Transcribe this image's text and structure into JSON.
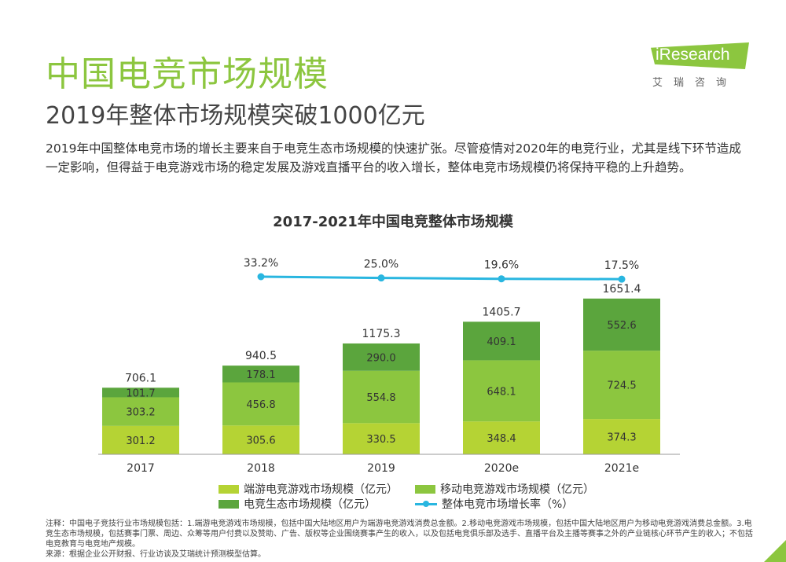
{
  "page": {
    "title": "中国电竞市场规模",
    "subtitle": "2019年整体市场规模突破1000亿元",
    "description": "2019年中国整体电竞市场的增长主要来自于电竞生态市场规模的快速扩张。尽管疫情对2020年的电竞行业，尤其是线下环节造成一定影响，但得益于电竞游戏市场的稳定发展及游戏直播平台的收入增长，整体电竞市场规模仍将保持平稳的上升趋势。",
    "logo_text": "iResearch",
    "logo_sub": "艾瑞咨询",
    "note": "注释：中国电子竞技行业市场规模包括：1.端游电竞游戏市场规模，包括中国大陆地区用户为端游电竞游戏消费总金额。2.移动电竞游戏市场规模，包括中国大陆地区用户为移动电竞游戏消费总金额。3.电竞生态市场规模，包括赛事门票、周边、众筹等用户付费以及赞助、广告、版权等企业围绕赛事产生的收入，以及包括电竞俱乐部及选手、直播平台及主播等赛事之外的产业链核心环节产生的收入；不包括电竞教育与电竞地产规模。",
    "source": "来源：根据企业公开财报、行业访谈及艾瑞统计预测模型估算。"
  },
  "colors": {
    "pc": "#b5d334",
    "mobile": "#8cc63f",
    "eco": "#5ba53d",
    "growth": "#29b6e0",
    "title_green": "#8cc63f"
  },
  "chart_data": {
    "type": "bar",
    "stacked": true,
    "title": "2017-2021年中国电竞整体市场规模",
    "categories": [
      "2017",
      "2018",
      "2019",
      "2020e",
      "2021e"
    ],
    "series": [
      {
        "name": "端游电竞游戏市场规模（亿元）",
        "values": [
          301.2,
          305.6,
          330.5,
          348.4,
          374.3
        ]
      },
      {
        "name": "移动电竞游戏市场规模（亿元）",
        "values": [
          303.2,
          456.8,
          554.8,
          648.1,
          724.5
        ]
      },
      {
        "name": "电竞生态市场规模（亿元）",
        "values": [
          101.7,
          178.1,
          290.0,
          409.1,
          552.6
        ]
      }
    ],
    "totals": [
      "706.1",
      "940.5",
      "1175.3",
      "1405.7",
      "1651.4"
    ],
    "value_labels": [
      [
        "301.2",
        "305.6",
        "330.5",
        "348.4",
        "374.3"
      ],
      [
        "303.2",
        "456.8",
        "554.8",
        "648.1",
        "724.5"
      ],
      [
        "101.7",
        "178.1",
        "290.0",
        "409.1",
        "552.6"
      ]
    ],
    "line_series": {
      "name": "整体电竞市场增长率（%）",
      "categories": [
        "2018",
        "2019",
        "2020e",
        "2021e"
      ],
      "values": [
        33.2,
        25.0,
        19.6,
        17.5
      ],
      "labels": [
        "33.2%",
        "25.0%",
        "19.6%",
        "17.5%"
      ]
    },
    "xlabel": "",
    "ylabel": "",
    "grid": false,
    "legend_position": "bottom"
  }
}
